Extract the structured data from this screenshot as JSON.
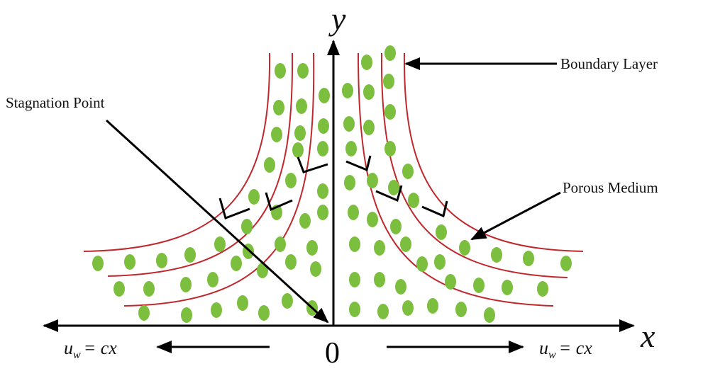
{
  "axes": {
    "y": "y",
    "x": "x",
    "origin": "0"
  },
  "labels": {
    "boundary_layer": "Boundary Layer",
    "stagnation_point": "Stagnation Point",
    "porous_medium": "Porous Medium"
  },
  "wall_velocity": {
    "left": {
      "symbol": "u",
      "subscript": "w",
      "rest": "= cx"
    },
    "right": {
      "symbol": "u",
      "subscript": "w",
      "rest": "= cx"
    }
  }
}
